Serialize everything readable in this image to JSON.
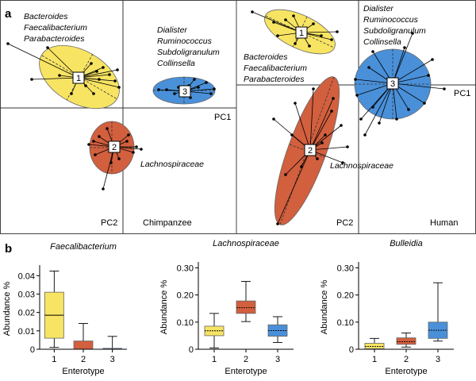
{
  "panel_a": {
    "label": "a",
    "pc1_label": "PC1",
    "pc2_label": "PC2",
    "chimpanzee": {
      "title": "Chimpanzee",
      "clusters": [
        {
          "id": "1",
          "color": "#f7e463",
          "genera": [
            "Bacteroides",
            "Faecalibacterium",
            "Parabacteroides"
          ]
        },
        {
          "id": "2",
          "color": "#d25f3e",
          "genera": [
            "Lachnospiraceae"
          ]
        },
        {
          "id": "3",
          "color": "#4a90d9",
          "genera": [
            "Dialister",
            "Ruminococcus",
            "Subdoligranulum",
            "Collinsella"
          ]
        }
      ]
    },
    "human": {
      "title": "Human",
      "clusters": [
        {
          "id": "1",
          "color": "#f7e463",
          "genera": [
            "Bacteroides",
            "Faecalibacterium",
            "Parabacteroides"
          ]
        },
        {
          "id": "2",
          "color": "#d25f3e",
          "genera": [
            "Lachnospiraceae"
          ]
        },
        {
          "id": "3",
          "color": "#4a90d9",
          "genera": [
            "Dialister",
            "Ruminococcus",
            "Subdoligranulum",
            "Collinsella"
          ]
        }
      ]
    }
  },
  "panel_b": {
    "label": "b",
    "box_colors": [
      "#f7e463",
      "#d25f3e",
      "#4a90d9"
    ]
  },
  "chart_data": [
    {
      "type": "boxplot",
      "title": "Faecalibacterium",
      "xlabel": "Enterotype",
      "ylabel": "Abundance %",
      "categories": [
        "1",
        "2",
        "3"
      ],
      "ylim": [
        0,
        0.044
      ],
      "yticks": [
        0,
        0.01,
        0.02,
        0.03,
        0.04
      ],
      "ytick_labels": [
        "0",
        "0.01",
        "0.02",
        "0.03",
        "0.04"
      ],
      "boxes": [
        {
          "min": 0.001,
          "q1": 0.006,
          "median": 0.0185,
          "q3": 0.031,
          "max": 0.0425
        },
        {
          "min": 0.0,
          "q1": 0.0,
          "median": 0.0,
          "q3": 0.0045,
          "max": 0.014
        },
        {
          "min": 0.0,
          "q1": 0.0,
          "median": 0.0,
          "q3": 0.0005,
          "max": 0.007
        }
      ]
    },
    {
      "type": "boxplot",
      "title": "Lachnospiraceae",
      "xlabel": "Enterotype",
      "ylabel": "Abundance %",
      "categories": [
        "1",
        "2",
        "3"
      ],
      "ylim": [
        0,
        0.31
      ],
      "yticks": [
        0,
        0.1,
        0.2,
        0.3
      ],
      "ytick_labels": [
        "0",
        "0.10",
        "0.20",
        "0.30"
      ],
      "boxes": [
        {
          "min": 0.005,
          "q1": 0.05,
          "median": 0.068,
          "q3": 0.085,
          "max": 0.132
        },
        {
          "min": 0.102,
          "q1": 0.132,
          "median": 0.153,
          "q3": 0.178,
          "max": 0.25
        },
        {
          "min": 0.025,
          "q1": 0.048,
          "median": 0.069,
          "q3": 0.09,
          "max": 0.12
        }
      ]
    },
    {
      "type": "boxplot",
      "title": "Bulleidia",
      "xlabel": "Enterotype",
      "ylabel": "Abundance %",
      "categories": [
        "1",
        "2",
        "3"
      ],
      "ylim": [
        0,
        0.31
      ],
      "yticks": [
        0,
        0.1,
        0.2,
        0.3
      ],
      "ytick_labels": [
        "0",
        "0.10",
        "0.20",
        "0.30"
      ],
      "boxes": [
        {
          "min": 0.0,
          "q1": 0.002,
          "median": 0.01,
          "q3": 0.022,
          "max": 0.04
        },
        {
          "min": 0.008,
          "q1": 0.018,
          "median": 0.028,
          "q3": 0.042,
          "max": 0.06
        },
        {
          "min": 0.03,
          "q1": 0.04,
          "median": 0.07,
          "q3": 0.1,
          "max": 0.245
        }
      ]
    }
  ]
}
